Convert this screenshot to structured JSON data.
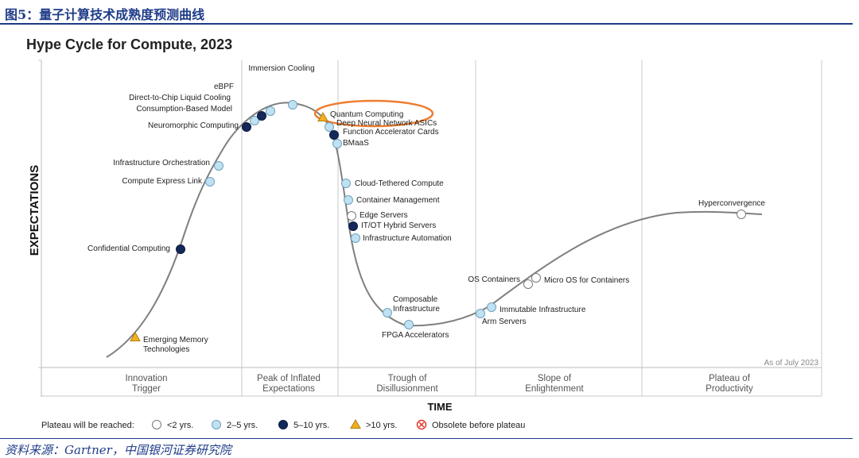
{
  "figure": {
    "caption": "图5：量子计算技术成熟度预测曲线",
    "source": "资料来源：Gartner，中国银河证券研究院"
  },
  "colors": {
    "caption_blue": "#1f3c88",
    "curve": "#7f7f7f",
    "lt2": "#ffffff",
    "y2to5": "#bfe1f2",
    "y5to10": "#14285a",
    "gt10": "#f2b01e",
    "obsolete": "#e03a2f",
    "highlight": "#ee7d31"
  },
  "chart_data": {
    "type": "hype-cycle",
    "title": "Hype Cycle for Compute, 2023",
    "xlabel": "TIME",
    "ylabel": "EXPECTATIONS",
    "as_of": "As of July 2023",
    "phases": [
      "Innovation\nTrigger",
      "Peak of Inflated\nExpectations",
      "Trough of\nDisillusionment",
      "Slope of\nEnlightenment",
      "Plateau of\nProductivity"
    ],
    "legend": {
      "label": "Plateau will be reached:",
      "items": [
        {
          "key": "lt2",
          "label": "<2 yrs."
        },
        {
          "key": "2to5",
          "label": "2–5 yrs."
        },
        {
          "key": "5to10",
          "label": "5–10 yrs."
        },
        {
          "key": "gt10",
          "label": ">10 yrs."
        },
        {
          "key": "obsolete",
          "label": "Obsolete before plateau"
        }
      ]
    },
    "highlighted": "Quantum Computing",
    "points": [
      {
        "name": "Emerging Memory\nTechnologies",
        "phase": "Innovation Trigger",
        "plateau": "gt10"
      },
      {
        "name": "Confidential Computing",
        "phase": "Innovation Trigger",
        "plateau": "5to10"
      },
      {
        "name": "Compute Express Link",
        "phase": "Innovation Trigger",
        "plateau": "2to5"
      },
      {
        "name": "Infrastructure Orchestration",
        "phase": "Innovation Trigger",
        "plateau": "2to5"
      },
      {
        "name": "Neuromorphic Computing",
        "phase": "Peak of Inflated Expectations",
        "plateau": "5to10"
      },
      {
        "name": "Consumption-Based Model",
        "phase": "Peak of Inflated Expectations",
        "plateau": "2to5"
      },
      {
        "name": "Direct-to-Chip Liquid Cooling",
        "phase": "Peak of Inflated Expectations",
        "plateau": "5to10"
      },
      {
        "name": "eBPF",
        "phase": "Peak of Inflated Expectations",
        "plateau": "2to5"
      },
      {
        "name": "Immersion Cooling",
        "phase": "Peak of Inflated Expectations",
        "plateau": "2to5"
      },
      {
        "name": "Quantum Computing",
        "phase": "Peak of Inflated Expectations",
        "plateau": "gt10"
      },
      {
        "name": "Deep Neural Network ASICs",
        "phase": "Peak of Inflated Expectations",
        "plateau": "2to5"
      },
      {
        "name": "Function Accelerator Cards",
        "phase": "Trough of Disillusionment",
        "plateau": "5to10"
      },
      {
        "name": "BMaaS",
        "phase": "Trough of Disillusionment",
        "plateau": "2to5"
      },
      {
        "name": "Cloud-Tethered Compute",
        "phase": "Trough of Disillusionment",
        "plateau": "2to5"
      },
      {
        "name": "Container Management",
        "phase": "Trough of Disillusionment",
        "plateau": "2to5"
      },
      {
        "name": "Edge Servers",
        "phase": "Trough of Disillusionment",
        "plateau": "lt2"
      },
      {
        "name": "IT/OT Hybrid Servers",
        "phase": "Trough of Disillusionment",
        "plateau": "5to10"
      },
      {
        "name": "Infrastructure Automation",
        "phase": "Trough of Disillusionment",
        "plateau": "2to5"
      },
      {
        "name": "Composable\nInfrastructure",
        "phase": "Trough of Disillusionment",
        "plateau": "2to5"
      },
      {
        "name": "FPGA Accelerators",
        "phase": "Trough of Disillusionment",
        "plateau": "2to5"
      },
      {
        "name": "Arm Servers",
        "phase": "Slope of Enlightenment",
        "plateau": "2to5"
      },
      {
        "name": "Immutable Infrastructure",
        "phase": "Slope of Enlightenment",
        "plateau": "2to5"
      },
      {
        "name": "OS Containers",
        "phase": "Slope of Enlightenment",
        "plateau": "lt2"
      },
      {
        "name": "Micro OS for Containers",
        "phase": "Slope of Enlightenment",
        "plateau": "lt2"
      },
      {
        "name": "Hyperconvergence",
        "phase": "Plateau of Productivity",
        "plateau": "lt2"
      }
    ]
  }
}
